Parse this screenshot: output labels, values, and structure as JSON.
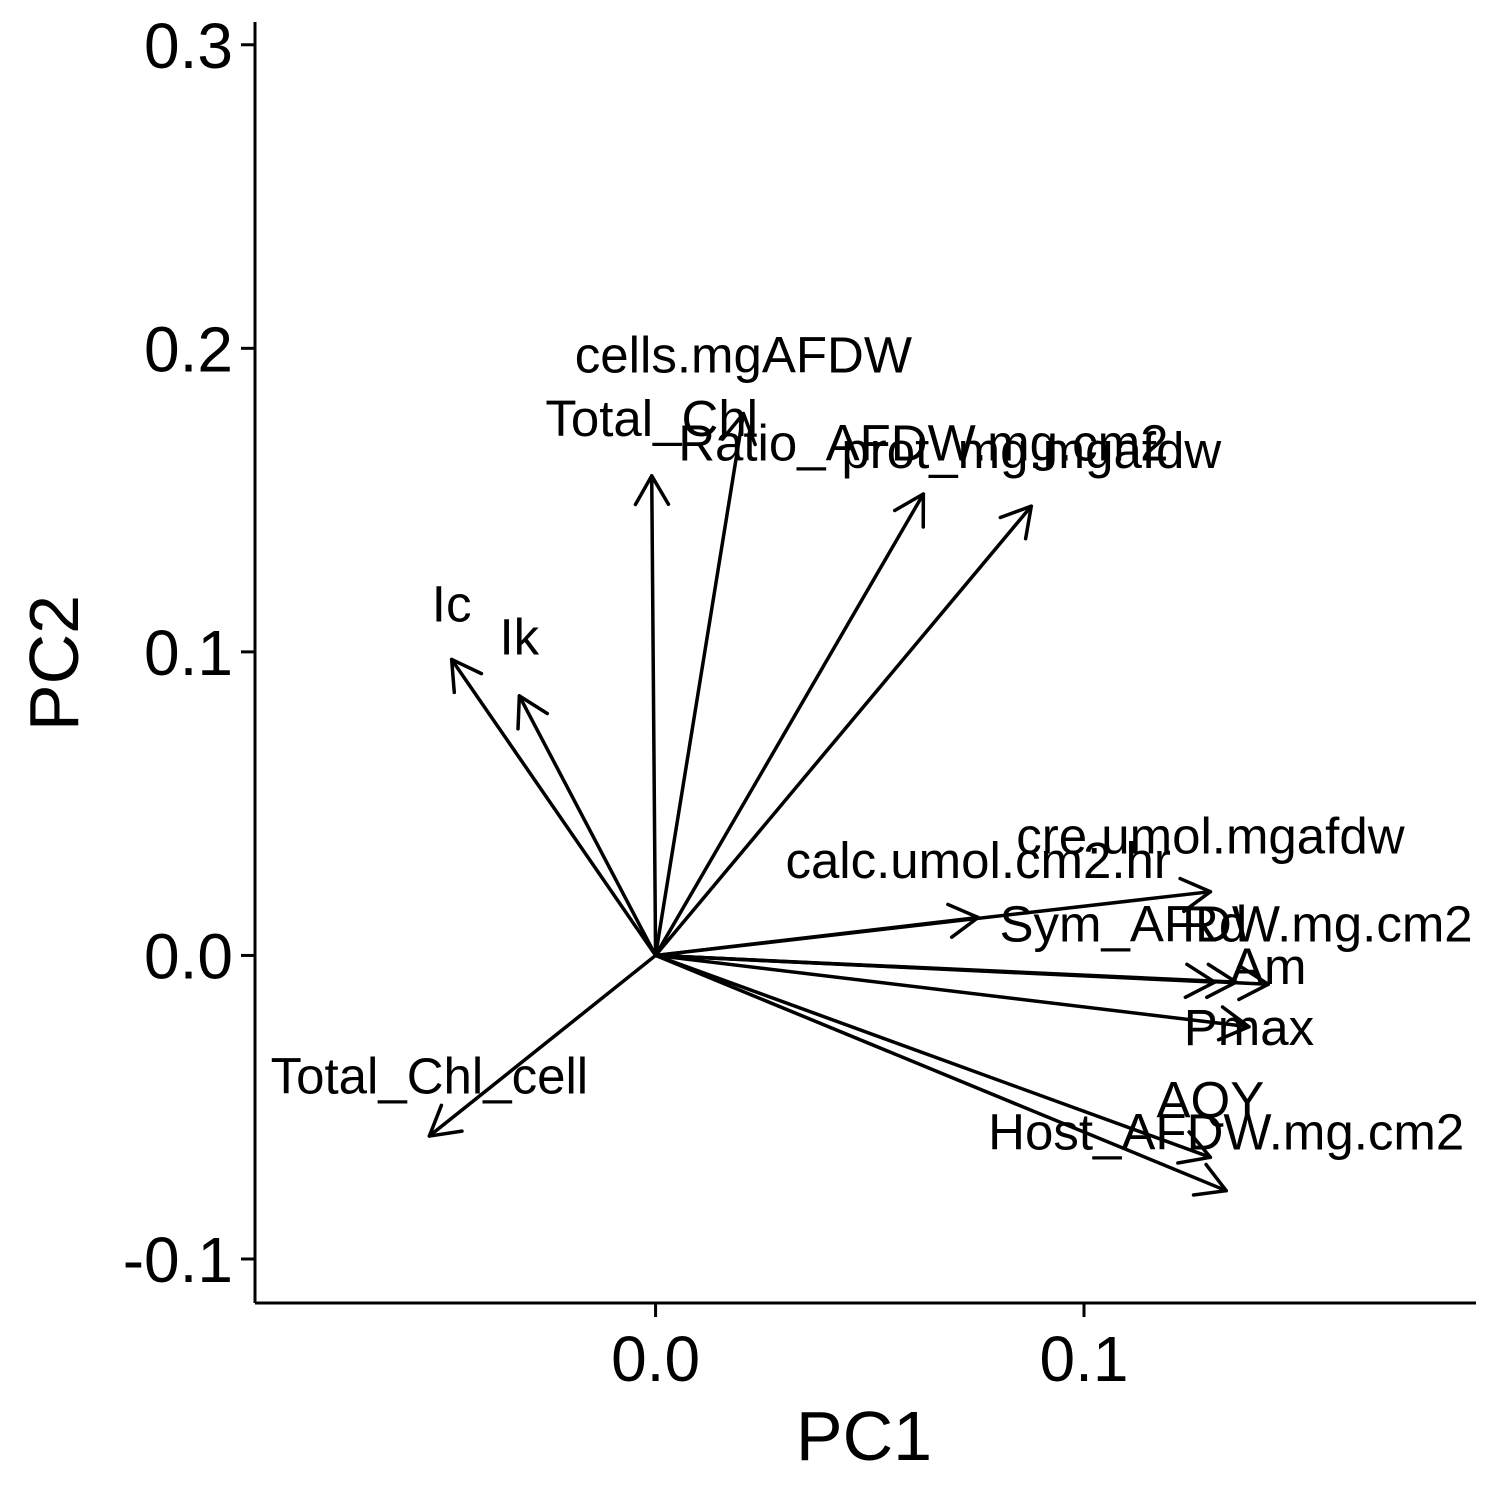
{
  "chart_data": {
    "type": "biplot",
    "xlabel": "PC1",
    "ylabel": "PC2",
    "xlim": [
      -0.0935,
      0.1915
    ],
    "ylim": [
      -0.1145,
      0.3075
    ],
    "xticks": [
      {
        "value": 0.0,
        "label": "0.0"
      },
      {
        "value": 0.1,
        "label": "0.1"
      }
    ],
    "yticks": [
      {
        "value": -0.1,
        "label": "-0.1"
      },
      {
        "value": 0.0,
        "label": "0.0"
      },
      {
        "value": 0.1,
        "label": "0.1"
      },
      {
        "value": 0.2,
        "label": "0.2"
      },
      {
        "value": 0.3,
        "label": "0.3"
      }
    ],
    "vectors": [
      {
        "name": "cells.mgAFDW",
        "x": 0.0205,
        "y": 0.1785,
        "label_x": 0.0205,
        "label_y": 0.198
      },
      {
        "name": "Total_Chl",
        "x": -0.0009,
        "y": 0.158,
        "label_x": -0.0009,
        "label_y": 0.177
      },
      {
        "name": "Ratio_AFDW.mg.cm2",
        "x": 0.0625,
        "y": 0.152,
        "label_x": 0.0625,
        "label_y": 0.169
      },
      {
        "name": "prot_mg.mgafdw",
        "x": 0.0877,
        "y": 0.148,
        "label_x": 0.0877,
        "label_y": 0.1665
      },
      {
        "name": "Ic",
        "x": -0.0476,
        "y": 0.0975,
        "label_x": -0.0476,
        "label_y": 0.116
      },
      {
        "name": "Ik",
        "x": -0.0318,
        "y": 0.0855,
        "label_x": -0.0318,
        "label_y": 0.105
      },
      {
        "name": "cre.umol.mgafdw",
        "x": 0.1295,
        "y": 0.021,
        "label_x": 0.1295,
        "label_y": 0.0395
      },
      {
        "name": "calc.umol.cm2.hr",
        "x": 0.0753,
        "y": 0.0125,
        "label_x": 0.0753,
        "label_y": 0.0315
      },
      {
        "name": "Sym_AFDW.mg.cm2",
        "x": 0.1355,
        "y": -0.0088,
        "label_x": 0.1355,
        "label_y": 0.0105
      },
      {
        "name": "Rd",
        "x": 0.1305,
        "y": -0.0088,
        "label_x": 0.1305,
        "label_y": 0.0105
      },
      {
        "name": "Am",
        "x": 0.143,
        "y": -0.0095,
        "label_x": 0.143,
        "label_y": -0.0035
      },
      {
        "name": "Pmax",
        "x": 0.1385,
        "y": -0.0235,
        "label_x": 0.1385,
        "label_y": -0.0235
      },
      {
        "name": "AQY",
        "x": 0.1295,
        "y": -0.0665,
        "label_x": 0.1295,
        "label_y": -0.0475
      },
      {
        "name": "Host_AFDW.mg.cm2",
        "x": 0.1332,
        "y": -0.0775,
        "label_x": 0.1332,
        "label_y": -0.058
      },
      {
        "name": "Total_Chl_cell",
        "x": -0.0528,
        "y": -0.0595,
        "label_x": -0.0528,
        "label_y": -0.0395
      }
    ]
  }
}
